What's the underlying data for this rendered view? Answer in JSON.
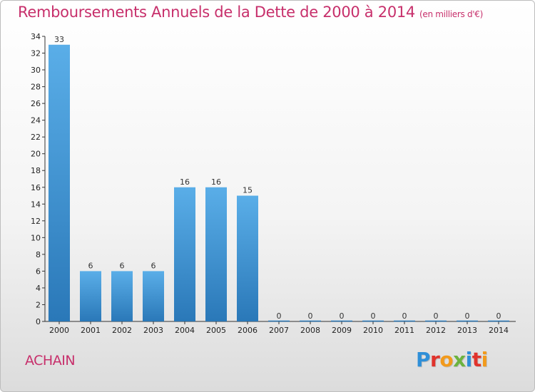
{
  "header": {
    "title": "Remboursements Annuels de la Dette de 2000 à 2014",
    "subtitle": "(en milliers d'€)"
  },
  "footer": {
    "commune": "ACHAIN",
    "logo_letters": [
      "P",
      "r",
      "o",
      "x",
      "i",
      "t",
      "i"
    ],
    "logo_colors": [
      "#2f8fd8",
      "#e0332c",
      "#f29a1c",
      "#6cb33f",
      "#2f8fd8",
      "#e0332c",
      "#f29a1c"
    ]
  },
  "chart_data": {
    "type": "bar",
    "title": "Remboursements Annuels de la Dette de 2000 à 2014",
    "subtitle": "(en milliers d'€)",
    "xlabel": "",
    "ylabel": "",
    "categories": [
      "2000",
      "2001",
      "2002",
      "2003",
      "2004",
      "2005",
      "2006",
      "2007",
      "2008",
      "2009",
      "2010",
      "2011",
      "2012",
      "2013",
      "2014"
    ],
    "values": [
      33,
      6,
      6,
      6,
      16,
      16,
      15,
      0,
      0,
      0,
      0,
      0,
      0,
      0,
      0
    ],
    "value_labels": [
      "33",
      "6",
      "6",
      "6",
      "16",
      "16",
      "15",
      "0",
      "0",
      "0",
      "0",
      "0",
      "0",
      "0",
      "0"
    ],
    "ylim": [
      0,
      34
    ],
    "yticks": [
      0,
      2,
      4,
      6,
      8,
      10,
      12,
      14,
      16,
      18,
      20,
      22,
      24,
      26,
      28,
      30,
      32,
      34
    ],
    "grid": false,
    "legend": "none",
    "bar_color_top": "#5aaee8",
    "bar_color_bottom": "#2a78b8"
  }
}
